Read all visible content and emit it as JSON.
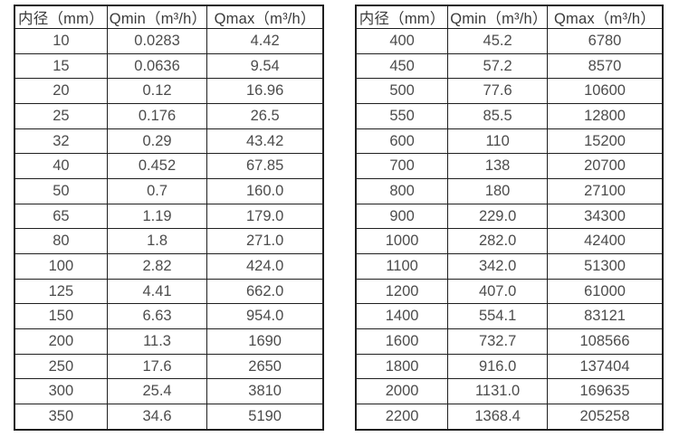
{
  "tables": [
    {
      "id": "flow-spec-table-left",
      "headers": [
        "内径（mm）",
        "Qmin（m³/h）",
        "Qmax（m³/h）"
      ],
      "rows": [
        [
          "10",
          "0.0283",
          "4.42"
        ],
        [
          "15",
          "0.0636",
          "9.54"
        ],
        [
          "20",
          "0.12",
          "16.96"
        ],
        [
          "25",
          "0.176",
          "26.5"
        ],
        [
          "32",
          "0.29",
          "43.42"
        ],
        [
          "40",
          "0.452",
          "67.85"
        ],
        [
          "50",
          "0.7",
          "160.0"
        ],
        [
          "65",
          "1.19",
          "179.0"
        ],
        [
          "80",
          "1.8",
          "271.0"
        ],
        [
          "100",
          "2.82",
          "424.0"
        ],
        [
          "125",
          "4.41",
          "662.0"
        ],
        [
          "150",
          "6.63",
          "954.0"
        ],
        [
          "200",
          "11.3",
          "1690"
        ],
        [
          "250",
          "17.6",
          "2650"
        ],
        [
          "300",
          "25.4",
          "3810"
        ],
        [
          "350",
          "34.6",
          "5190"
        ]
      ]
    },
    {
      "id": "flow-spec-table-right",
      "headers": [
        "内径（mm）",
        "Qmin（m³/h）",
        "Qmax（m³/h）"
      ],
      "rows": [
        [
          "400",
          "45.2",
          "6780"
        ],
        [
          "450",
          "57.2",
          "8570"
        ],
        [
          "500",
          "77.6",
          "10600"
        ],
        [
          "550",
          "85.5",
          "12800"
        ],
        [
          "600",
          "110",
          "15200"
        ],
        [
          "700",
          "138",
          "20700"
        ],
        [
          "800",
          "180",
          "27100"
        ],
        [
          "900",
          "229.0",
          "34300"
        ],
        [
          "1000",
          "282.0",
          "42400"
        ],
        [
          "1100",
          "342.0",
          "51300"
        ],
        [
          "1200",
          "407.0",
          "61000"
        ],
        [
          "1400",
          "554.1",
          "83121"
        ],
        [
          "1600",
          "732.7",
          "108566"
        ],
        [
          "1800",
          "916.0",
          "137404"
        ],
        [
          "2000",
          "1131.0",
          "169635"
        ],
        [
          "2200",
          "1368.4",
          "205258"
        ]
      ]
    }
  ],
  "colors": {
    "border": "#1f1f1f",
    "header_text": "#3b3b3b",
    "cell_text": "#4c4c4c",
    "background": "#ffffff"
  }
}
